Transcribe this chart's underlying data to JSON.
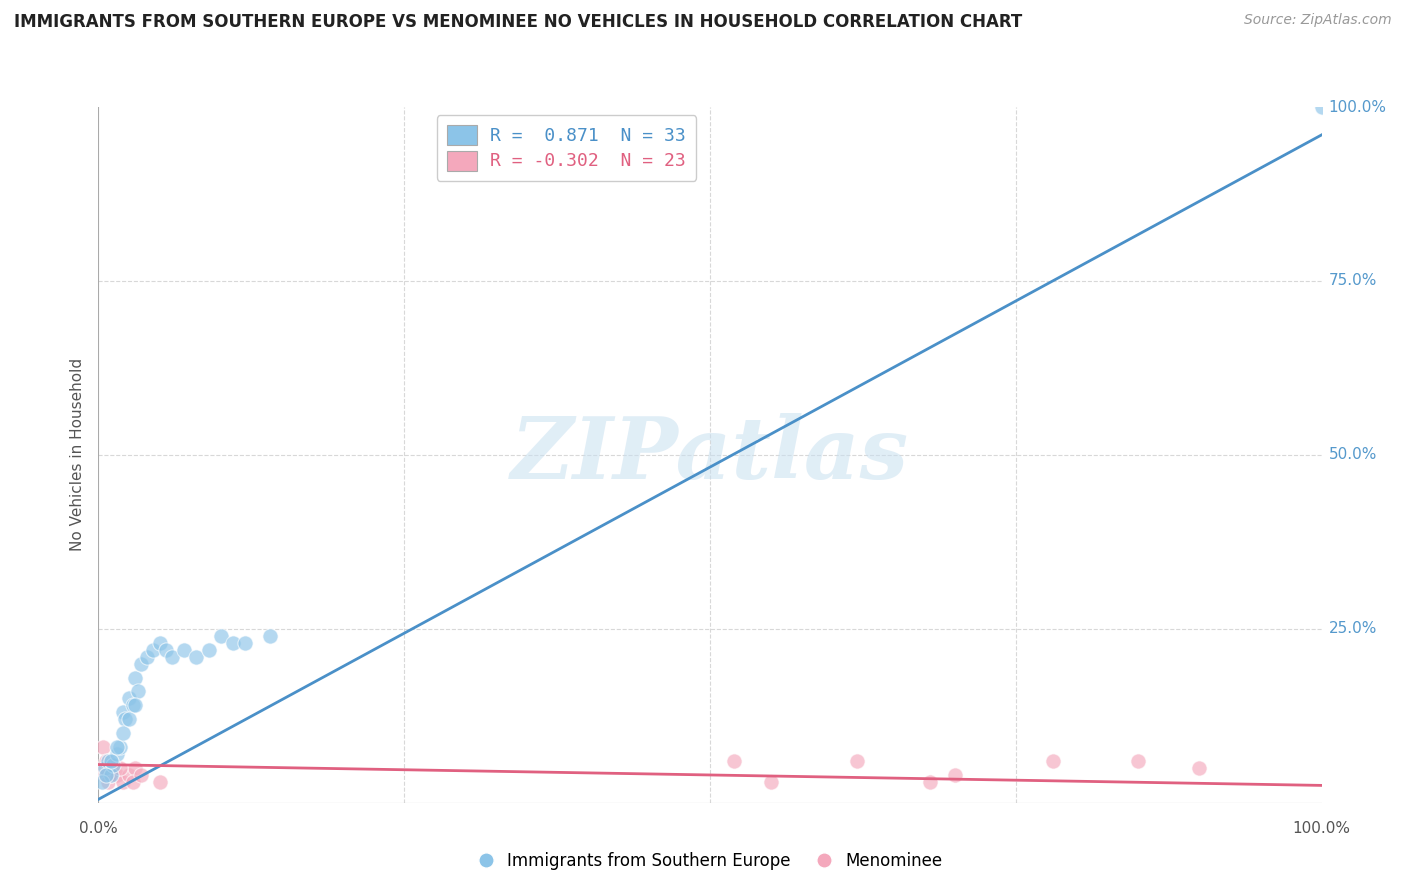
{
  "title": "IMMIGRANTS FROM SOUTHERN EUROPE VS MENOMINEE NO VEHICLES IN HOUSEHOLD CORRELATION CHART",
  "source": "Source: ZipAtlas.com",
  "ylabel": "No Vehicles in Household",
  "legend_blue_r": "0.871",
  "legend_blue_n": "33",
  "legend_pink_r": "-0.302",
  "legend_pink_n": "23",
  "legend_label_blue": "Immigrants from Southern Europe",
  "legend_label_pink": "Menominee",
  "blue_color": "#8cc4e8",
  "pink_color": "#f4a8bc",
  "blue_line_color": "#4a90c8",
  "pink_line_color": "#e06080",
  "watermark_text": "ZIPatlas",
  "blue_scatter_x": [
    0.5,
    0.8,
    1.0,
    1.2,
    1.5,
    1.8,
    2.0,
    2.2,
    2.5,
    2.8,
    3.0,
    3.2,
    3.5,
    4.0,
    4.5,
    5.0,
    5.5,
    6.0,
    7.0,
    8.0,
    9.0,
    10.0,
    11.0,
    12.0,
    14.0,
    0.3,
    0.6,
    1.0,
    1.5,
    2.0,
    2.5,
    3.0,
    100.0
  ],
  "blue_scatter_y": [
    5.0,
    6.0,
    4.0,
    5.5,
    7.0,
    8.0,
    13.0,
    12.0,
    15.0,
    14.0,
    18.0,
    16.0,
    20.0,
    21.0,
    22.0,
    23.0,
    22.0,
    21.0,
    22.0,
    21.0,
    22.0,
    24.0,
    23.0,
    23.0,
    24.0,
    3.0,
    4.0,
    6.0,
    8.0,
    10.0,
    12.0,
    14.0,
    100.0
  ],
  "pink_scatter_x": [
    0.3,
    0.5,
    0.8,
    1.0,
    1.2,
    1.5,
    2.0,
    2.5,
    3.0,
    0.4,
    0.6,
    1.8,
    2.8,
    3.5,
    5.0,
    52.0,
    62.0,
    70.0,
    78.0,
    85.0,
    90.0,
    55.0,
    68.0
  ],
  "pink_scatter_y": [
    5.0,
    4.0,
    3.0,
    4.0,
    5.0,
    4.0,
    3.0,
    4.0,
    5.0,
    8.0,
    6.0,
    5.0,
    3.0,
    4.0,
    3.0,
    6.0,
    6.0,
    4.0,
    6.0,
    6.0,
    5.0,
    3.0,
    3.0
  ],
  "blue_line_x": [
    0.0,
    100.0
  ],
  "blue_line_y": [
    0.5,
    96.0
  ],
  "pink_line_x": [
    0.0,
    100.0
  ],
  "pink_line_y": [
    5.5,
    2.5
  ],
  "xmin": 0.0,
  "xmax": 100.0,
  "ymin": 0.0,
  "ymax": 100.0,
  "ytick_positions": [
    0,
    25,
    50,
    75,
    100
  ],
  "ytick_labels_right": [
    "",
    "25.0%",
    "50.0%",
    "75.0%",
    "100.0%"
  ],
  "xtick_positions": [
    0,
    100
  ],
  "xtick_labels": [
    "0.0%",
    "100.0%"
  ],
  "grid_color": "#d8d8d8",
  "right_tick_color": "#5599cc"
}
